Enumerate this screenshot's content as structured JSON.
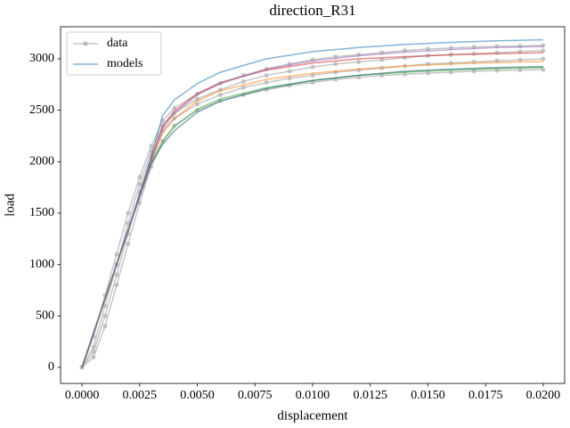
{
  "chart_data": {
    "type": "line",
    "title": "direction_R31",
    "x_label": "displacement",
    "y_label": "load",
    "xlim": [
      -0.00093,
      0.02093
    ],
    "ylim": [
      -156,
      3312
    ],
    "xticks": [
      {
        "value": 0,
        "label": "0.0000"
      },
      {
        "value": 0.0025,
        "label": "0.0025"
      },
      {
        "value": 0.005,
        "label": "0.0050"
      },
      {
        "value": 0.0075,
        "label": "0.0075"
      },
      {
        "value": 0.01,
        "label": "0.0100"
      },
      {
        "value": 0.0125,
        "label": "0.0125"
      },
      {
        "value": 0.015,
        "label": "0.0150"
      },
      {
        "value": 0.0175,
        "label": "0.0175"
      },
      {
        "value": 0.02,
        "label": "0.0200"
      }
    ],
    "yticks": [
      0,
      500,
      1000,
      1500,
      2000,
      2500,
      3000
    ],
    "grid": false,
    "legend_position": "upper left",
    "series": [
      {
        "name": "data",
        "color": "#bbbbbb",
        "marker": "o",
        "x": [
          0,
          0.0005,
          0.001,
          0.0015,
          0.002,
          0.0025,
          0.003,
          0.0035,
          0.004,
          0.005,
          0.006,
          0.007,
          0.008,
          0.009,
          0.01,
          0.011,
          0.012,
          0.013,
          0.014,
          0.015,
          0.016,
          0.017,
          0.018,
          0.019,
          0.02
        ],
        "curves": [
          {
            "values": [
              0,
              150,
              500,
              900,
              1300,
              1700,
              2050,
              2300,
              2420,
              2560,
              2650,
              2720,
              2770,
              2810,
              2840,
              2870,
              2890,
              2910,
              2930,
              2950,
              2960,
              2970,
              2980,
              2990,
              3000
            ]
          },
          {
            "values": [
              0,
              300,
              700,
              1100,
              1500,
              1850,
              2150,
              2400,
              2520,
              2660,
              2760,
              2840,
              2900,
              2950,
              2990,
              3020,
              3040,
              3060,
              3080,
              3095,
              3105,
              3115,
              3120,
              3125,
              3130
            ]
          },
          {
            "values": [
              0,
              100,
              400,
              800,
              1200,
              1600,
              1950,
              2200,
              2350,
              2500,
              2590,
              2650,
              2700,
              2740,
              2770,
              2800,
              2820,
              2840,
              2850,
              2860,
              2870,
              2880,
              2885,
              2890,
              2895
            ]
          },
          {
            "values": [
              0,
              200,
              600,
              1000,
              1400,
              1780,
              2100,
              2350,
              2470,
              2610,
              2700,
              2780,
              2840,
              2880,
              2920,
              2950,
              2970,
              2990,
              3010,
              3030,
              3040,
              3050,
              3060,
              3070,
              3080
            ]
          }
        ]
      },
      {
        "name": "models",
        "color": "#1f77b4",
        "x": [
          0,
          0.001,
          0.002,
          0.003,
          0.0035,
          0.004,
          0.005,
          0.006,
          0.008,
          0.01,
          0.012,
          0.014,
          0.016,
          0.018,
          0.02
        ],
        "curves": [
          {
            "color": "#1f77b4",
            "values": [
              0,
              667,
              1333,
              2050,
              2450,
              2600,
              2760,
              2870,
              3000,
              3070,
              3110,
              3140,
              3160,
              3175,
              3185
            ]
          },
          {
            "color": "#d62728",
            "values": [
              0,
              667,
              1333,
              2020,
              2350,
              2490,
              2660,
              2770,
              2890,
              2960,
              3000,
              3020,
              3040,
              3050,
              3060
            ]
          },
          {
            "color": "#ff7f0e",
            "values": [
              0,
              667,
              1333,
              2000,
              2280,
              2420,
              2590,
              2690,
              2800,
              2860,
              2900,
              2930,
              2950,
              2965,
              2975
            ]
          },
          {
            "color": "#2ca02c",
            "values": [
              0,
              667,
              1333,
              1990,
              2200,
              2340,
              2510,
              2610,
              2720,
              2790,
              2840,
              2870,
              2890,
              2905,
              2915
            ]
          },
          {
            "color": "#17606f",
            "values": [
              0,
              667,
              1333,
              1980,
              2170,
              2300,
              2480,
              2590,
              2710,
              2790,
              2840,
              2880,
              2900,
              2915,
              2925
            ]
          },
          {
            "color": "#9467bd",
            "values": [
              0,
              667,
              1333,
              2010,
              2320,
              2470,
              2650,
              2760,
              2900,
              2980,
              3030,
              3065,
              3090,
              3110,
              3120
            ]
          }
        ]
      }
    ]
  }
}
